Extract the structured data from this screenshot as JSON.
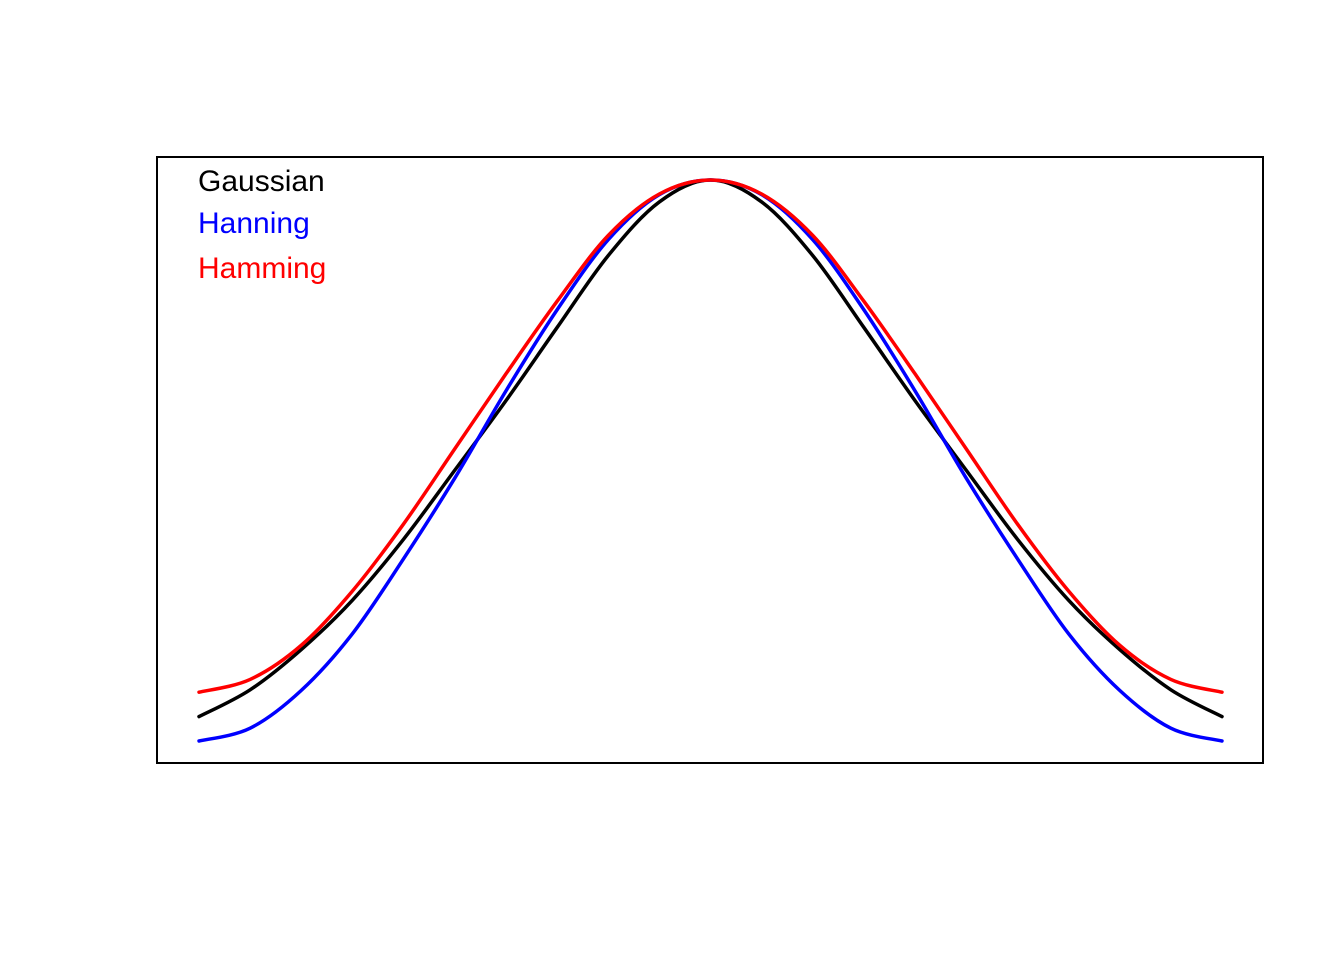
{
  "chart_data": {
    "type": "line",
    "title": "",
    "xlabel": "",
    "ylabel": "",
    "grid": false,
    "legend_placement": "top-left",
    "xlim": [
      0,
      1
    ],
    "ylim": [
      0.05,
      1.04
    ],
    "series": [
      {
        "name": "Gaussian",
        "color": "#000000",
        "x": [
          0,
          0.05,
          0.1,
          0.15,
          0.2,
          0.25,
          0.3,
          0.35,
          0.4,
          0.45,
          0.5,
          0.55,
          0.6,
          0.65,
          0.7,
          0.75,
          0.8,
          0.85,
          0.9,
          0.95,
          1
        ],
        "values": [
          0.12,
          0.164,
          0.23,
          0.311,
          0.411,
          0.524,
          0.638,
          0.758,
          0.876,
          0.964,
          1.0,
          0.964,
          0.876,
          0.758,
          0.638,
          0.524,
          0.411,
          0.311,
          0.23,
          0.164,
          0.12
        ]
      },
      {
        "name": "Hanning",
        "color": "#0000ff",
        "x": [
          0,
          0.05,
          0.1,
          0.15,
          0.2,
          0.25,
          0.3,
          0.35,
          0.4,
          0.45,
          0.5,
          0.55,
          0.6,
          0.65,
          0.7,
          0.75,
          0.8,
          0.85,
          0.9,
          0.95,
          1
        ],
        "values": [
          0.08,
          0.101,
          0.163,
          0.256,
          0.379,
          0.511,
          0.654,
          0.787,
          0.902,
          0.976,
          1.0,
          0.976,
          0.902,
          0.787,
          0.654,
          0.511,
          0.379,
          0.256,
          0.163,
          0.101,
          0.08
        ]
      },
      {
        "name": "Hamming",
        "color": "#ff0000",
        "x": [
          0,
          0.05,
          0.1,
          0.15,
          0.2,
          0.25,
          0.3,
          0.35,
          0.4,
          0.45,
          0.5,
          0.55,
          0.6,
          0.65,
          0.7,
          0.75,
          0.8,
          0.85,
          0.9,
          0.95,
          1
        ],
        "values": [
          0.16,
          0.181,
          0.237,
          0.326,
          0.436,
          0.559,
          0.682,
          0.801,
          0.909,
          0.977,
          1.0,
          0.977,
          0.909,
          0.801,
          0.682,
          0.559,
          0.436,
          0.326,
          0.237,
          0.181,
          0.16
        ]
      }
    ]
  }
}
